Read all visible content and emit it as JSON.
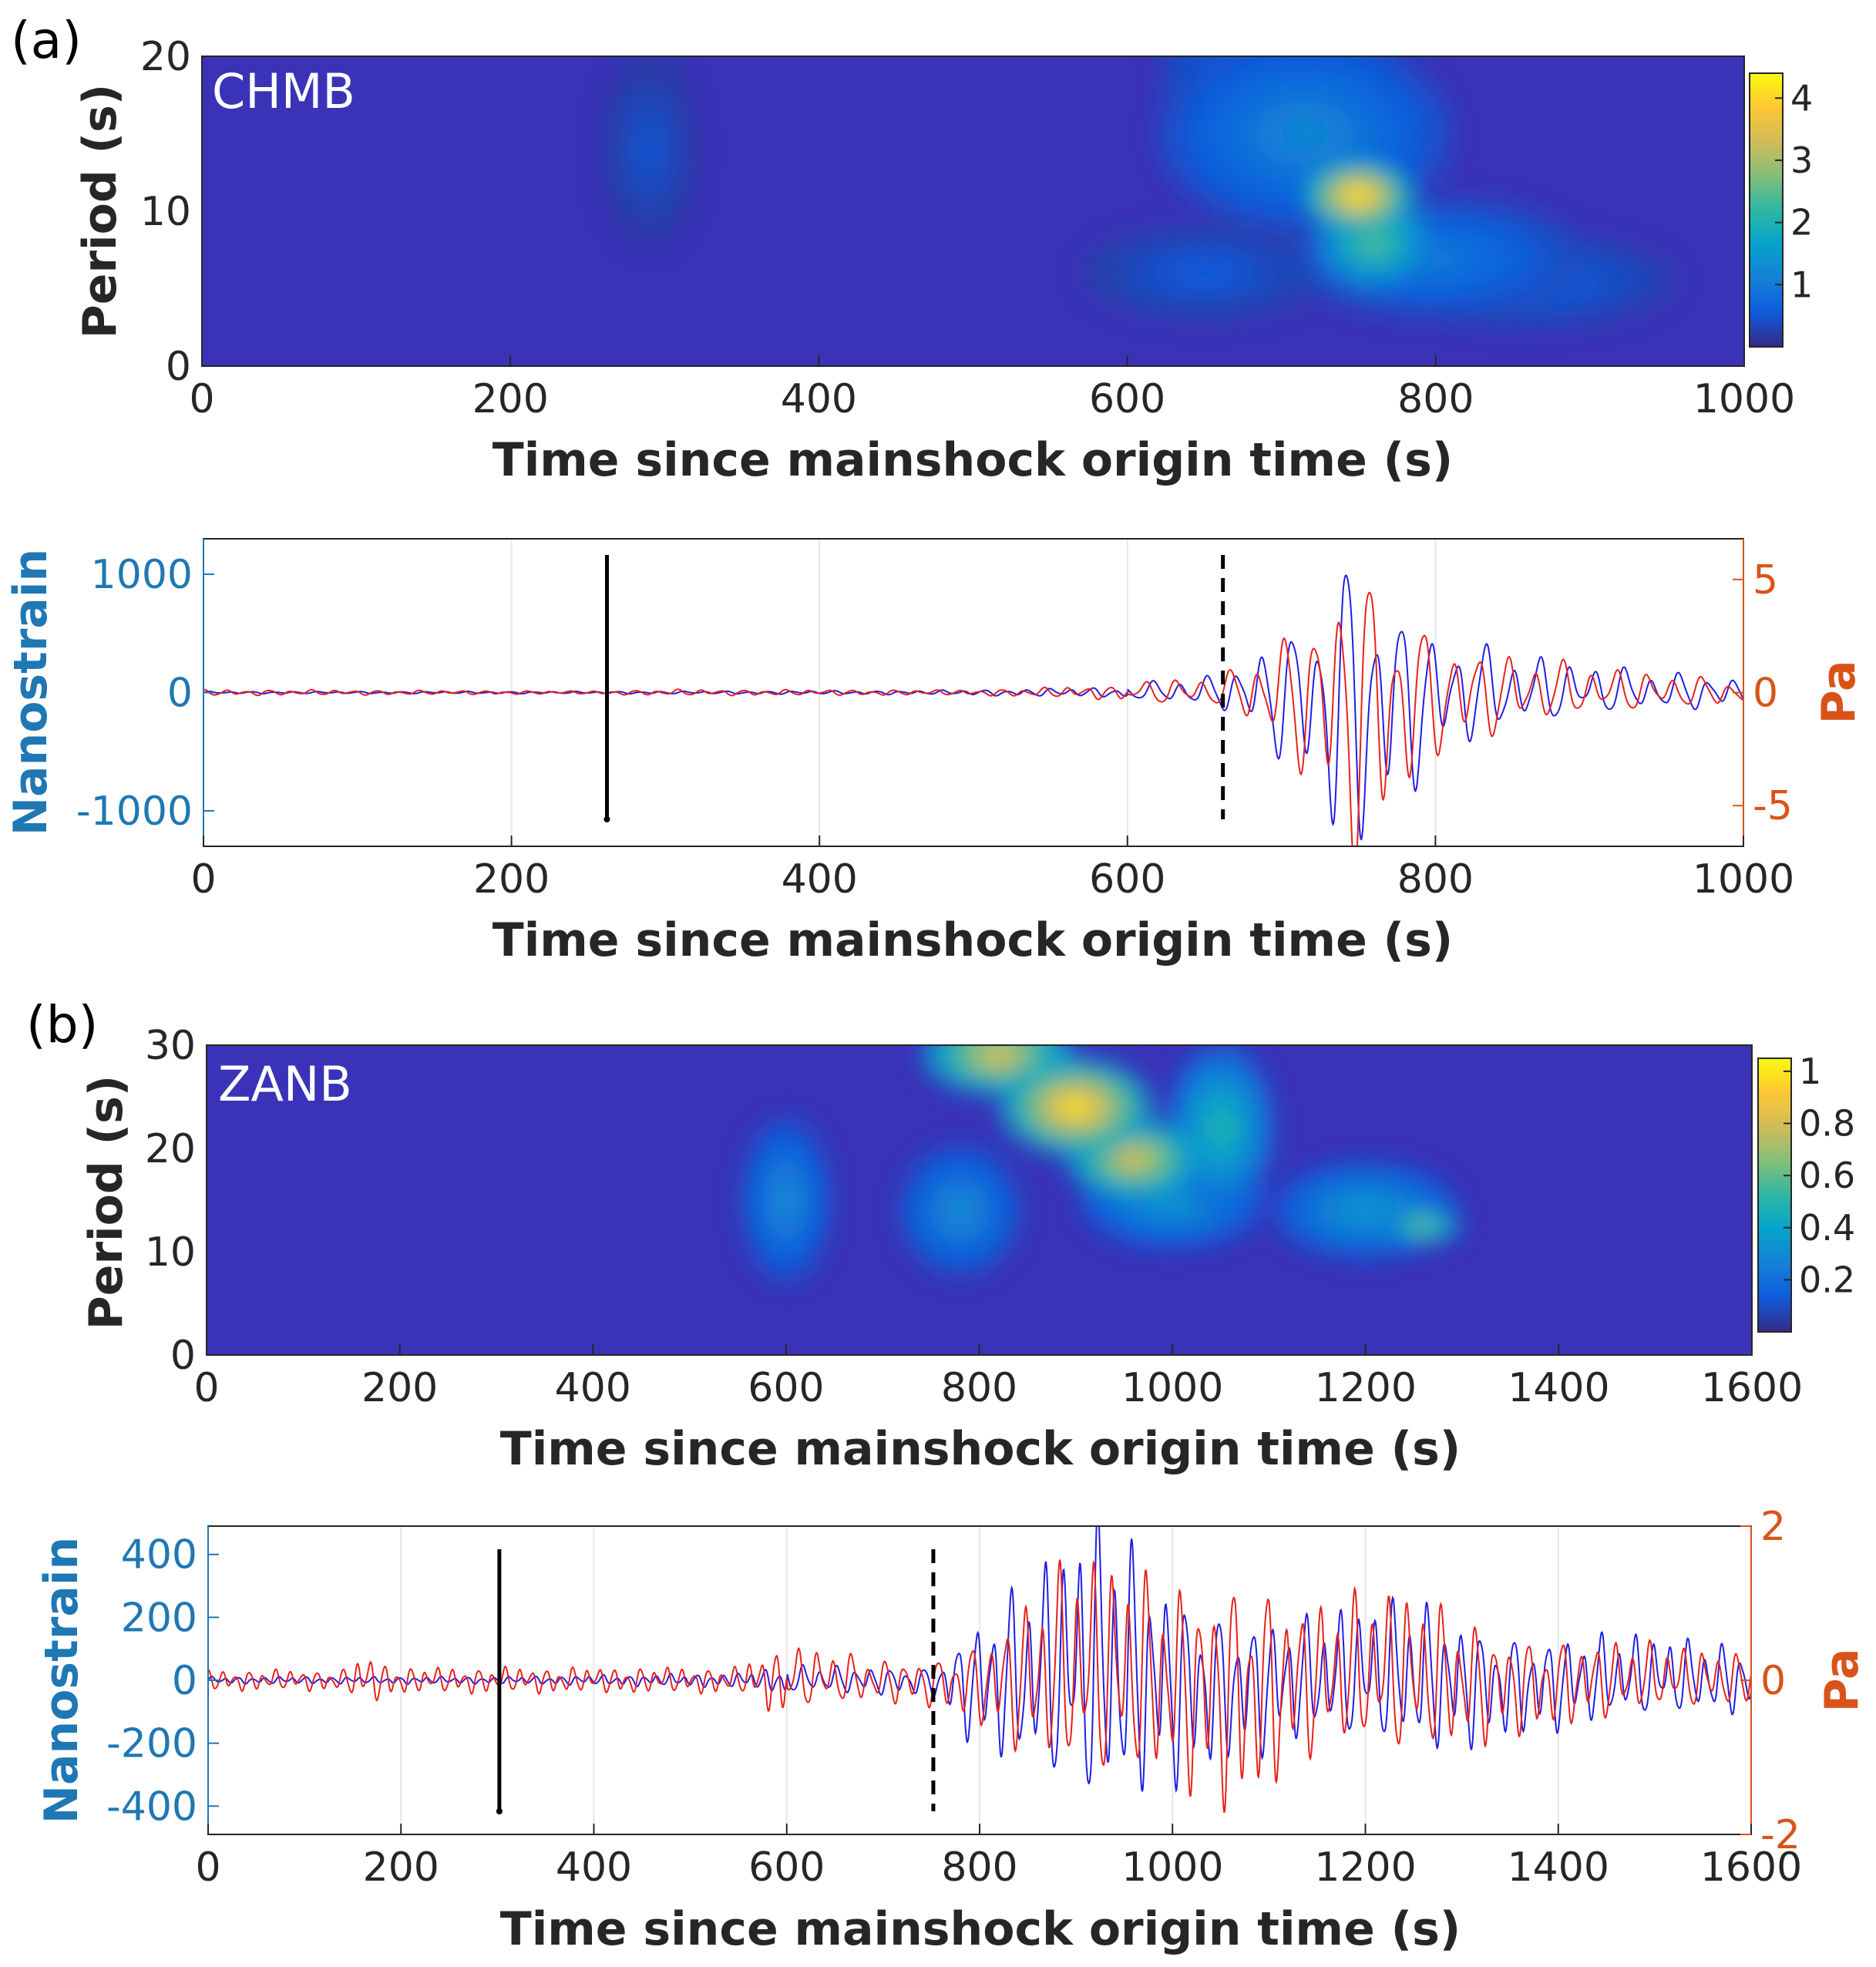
{
  "chart_data": [
    {
      "panel": "(a)",
      "type": "heatmap",
      "station": "CHMB",
      "xlabel": "Time since mainshock origin time (s)",
      "ylabel": "Period (s)",
      "xlim": [
        0,
        1000
      ],
      "ylim": [
        0,
        20
      ],
      "xticks": [
        "0",
        "200",
        "400",
        "600",
        "800",
        "1000"
      ],
      "yticks": [
        "0",
        "10",
        "20"
      ],
      "colorbar": {
        "range": [
          0,
          4.4
        ],
        "ticks": [
          "1",
          "2",
          "3",
          "4"
        ]
      },
      "hotspots": [
        {
          "t": 750,
          "p": 11,
          "v": 4.4,
          "st": 22,
          "sp": 1.4
        },
        {
          "t": 760,
          "p": 8,
          "v": 2.5,
          "st": 25,
          "sp": 2.0
        },
        {
          "t": 715,
          "p": 15,
          "v": 1.2,
          "st": 60,
          "sp": 4
        },
        {
          "t": 700,
          "p": 19,
          "v": 0.9,
          "st": 50,
          "sp": 2.5
        },
        {
          "t": 800,
          "p": 7,
          "v": 1.0,
          "st": 60,
          "sp": 2.5
        },
        {
          "t": 860,
          "p": 5.5,
          "v": 0.7,
          "st": 60,
          "sp": 2.0
        },
        {
          "t": 650,
          "p": 6,
          "v": 0.6,
          "st": 50,
          "sp": 2.0
        },
        {
          "t": 290,
          "p": 14,
          "v": 0.5,
          "st": 20,
          "sp": 4
        }
      ]
    },
    {
      "panel": "(a)",
      "type": "line",
      "xlabel": "Time since mainshock origin time (s)",
      "ylabel_left": "Nanostrain",
      "ylabel_right": "Pa",
      "xlim": [
        0,
        1000
      ],
      "ylim_left": [
        -1300,
        1300
      ],
      "ylim_right": [
        -6.8,
        6.8
      ],
      "xticks": [
        "0",
        "200",
        "400",
        "600",
        "800",
        "1000"
      ],
      "yticks_left": [
        "-1000",
        "0",
        "1000"
      ],
      "yticks_right": [
        "-5",
        "0",
        "5"
      ],
      "markers": {
        "solid": 262,
        "dashed": 662
      },
      "series": [
        {
          "name": "Nanostrain",
          "axis": "left",
          "color": "#1f1fe6",
          "envelope": [
            [
              0,
              8
            ],
            [
              250,
              8
            ],
            [
              470,
              15
            ],
            [
              600,
              40
            ],
            [
              620,
              90
            ],
            [
              660,
              130
            ],
            [
              690,
              400
            ],
            [
              720,
              700
            ],
            [
              740,
              1250
            ],
            [
              770,
              900
            ],
            [
              800,
              500
            ],
            [
              850,
              300
            ],
            [
              900,
              200
            ],
            [
              950,
              150
            ],
            [
              1000,
              130
            ]
          ]
        },
        {
          "name": "Pa",
          "axis": "right",
          "color": "#e8221b",
          "envelope": [
            [
              0,
              0.12
            ],
            [
              250,
              0.06
            ],
            [
              300,
              0.12
            ],
            [
              500,
              0.1
            ],
            [
              600,
              0.3
            ],
            [
              620,
              0.5
            ],
            [
              660,
              0.6
            ],
            [
              690,
              1.8
            ],
            [
              720,
              3.5
            ],
            [
              745,
              6.8
            ],
            [
              770,
              5.0
            ],
            [
              800,
              2.5
            ],
            [
              850,
              1.5
            ],
            [
              900,
              1.0
            ],
            [
              950,
              0.7
            ],
            [
              1000,
              0.5
            ]
          ]
        }
      ]
    },
    {
      "panel": "(b)",
      "type": "heatmap",
      "station": "ZANB",
      "xlabel": "Time since mainshock origin time (s)",
      "ylabel": "Period (s)",
      "xlim": [
        0,
        1600
      ],
      "ylim": [
        0,
        30
      ],
      "xticks": [
        "0",
        "200",
        "400",
        "600",
        "800",
        "1000",
        "1200",
        "1400",
        "1600"
      ],
      "yticks": [
        "0",
        "10",
        "20",
        "30"
      ],
      "colorbar": {
        "range": [
          0,
          1.05
        ],
        "ticks": [
          "0.2",
          "0.4",
          "0.6",
          "0.8",
          "1"
        ]
      },
      "hotspots": [
        {
          "t": 900,
          "p": 24,
          "v": 1.0,
          "st": 50,
          "sp": 3
        },
        {
          "t": 960,
          "p": 19,
          "v": 0.85,
          "st": 45,
          "sp": 2.5
        },
        {
          "t": 820,
          "p": 29,
          "v": 0.85,
          "st": 50,
          "sp": 2.5
        },
        {
          "t": 1050,
          "p": 22,
          "v": 0.5,
          "st": 35,
          "sp": 5
        },
        {
          "t": 1260,
          "p": 12.5,
          "v": 0.65,
          "st": 25,
          "sp": 1.2
        },
        {
          "t": 1200,
          "p": 14,
          "v": 0.35,
          "st": 60,
          "sp": 3
        },
        {
          "t": 1000,
          "p": 15,
          "v": 0.35,
          "st": 60,
          "sp": 3
        },
        {
          "t": 780,
          "p": 14,
          "v": 0.3,
          "st": 40,
          "sp": 4
        },
        {
          "t": 600,
          "p": 15,
          "v": 0.3,
          "st": 30,
          "sp": 5
        }
      ]
    },
    {
      "panel": "(b)",
      "type": "line",
      "xlabel": "Time since mainshock origin time (s)",
      "ylabel_left": "Nanostrain",
      "ylabel_right": "Pa",
      "xlim": [
        0,
        1600
      ],
      "ylim_left": [
        -490,
        490
      ],
      "ylim_right": [
        -2,
        2
      ],
      "xticks": [
        "0",
        "200",
        "400",
        "600",
        "800",
        "1000",
        "1200",
        "1400",
        "1600"
      ],
      "yticks_left": [
        "-400",
        "-200",
        "0",
        "200",
        "400"
      ],
      "yticks_right": [
        "-2",
        "0",
        "2"
      ],
      "markers": {
        "solid": 302,
        "dashed": 752
      },
      "series": [
        {
          "name": "Nanostrain",
          "axis": "left",
          "color": "#1f1fe6",
          "envelope": [
            [
              0,
              10
            ],
            [
              300,
              10
            ],
            [
              550,
              20
            ],
            [
              600,
              40
            ],
            [
              750,
              40
            ],
            [
              800,
              200
            ],
            [
              880,
              350
            ],
            [
              930,
              480
            ],
            [
              970,
              350
            ],
            [
              1050,
              220
            ],
            [
              1150,
              180
            ],
            [
              1250,
              230
            ],
            [
              1350,
              150
            ],
            [
              1450,
              130
            ],
            [
              1600,
              100
            ]
          ]
        },
        {
          "name": "Pa",
          "axis": "right",
          "color": "#e8221b",
          "envelope": [
            [
              0,
              0.12
            ],
            [
              140,
              0.12
            ],
            [
              160,
              0.3
            ],
            [
              200,
              0.15
            ],
            [
              550,
              0.15
            ],
            [
              590,
              0.4
            ],
            [
              700,
              0.25
            ],
            [
              760,
              0.3
            ],
            [
              800,
              0.5
            ],
            [
              900,
              1.4
            ],
            [
              950,
              1.3
            ],
            [
              1000,
              1.2
            ],
            [
              1070,
              1.45
            ],
            [
              1150,
              0.9
            ],
            [
              1250,
              1.0
            ],
            [
              1350,
              0.6
            ],
            [
              1500,
              0.4
            ],
            [
              1600,
              0.3
            ]
          ]
        }
      ]
    }
  ]
}
